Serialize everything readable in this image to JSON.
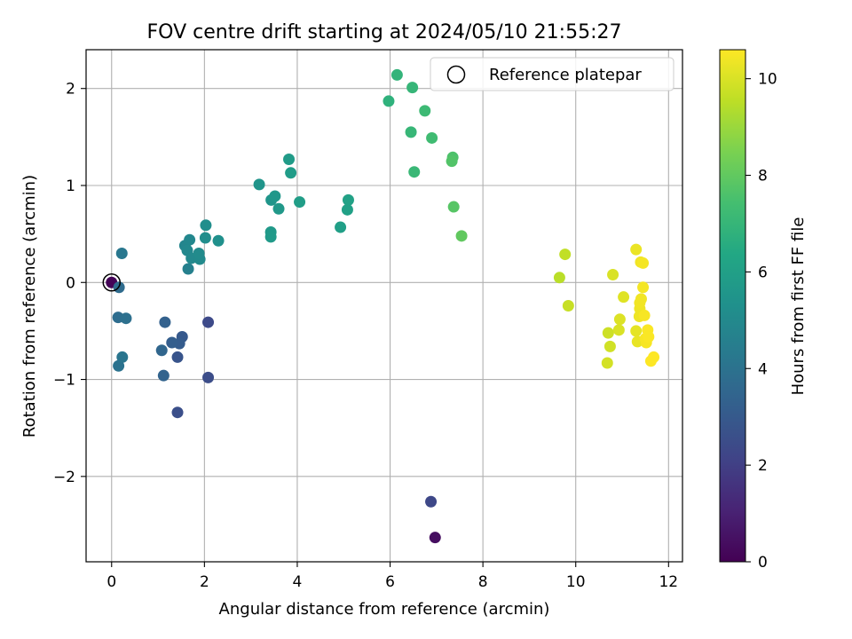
{
  "chart_data": {
    "type": "scatter",
    "title": "FOV centre drift starting at 2024/05/10 21:55:27",
    "xlabel": "Angular distance from reference (arcmin)",
    "ylabel": "Rotation from reference (arcmin)",
    "xlim": [
      -0.55,
      12.3
    ],
    "ylim": [
      -2.88,
      2.4
    ],
    "xticks": [
      0,
      2,
      4,
      6,
      8,
      10,
      12
    ],
    "yticks": [
      -2,
      -1,
      0,
      1,
      2
    ],
    "xtick_labels": [
      "0",
      "2",
      "4",
      "6",
      "8",
      "10",
      "12"
    ],
    "ytick_labels": [
      "−2",
      "−1",
      "0",
      "1",
      "2"
    ],
    "grid": true,
    "legend": {
      "label": "Reference platepar",
      "placement": "upper-right",
      "marker": "open-circle"
    },
    "reference_point": {
      "x": 0,
      "y": 0
    },
    "colorbar": {
      "label": "Hours from first FF file",
      "colormap": "viridis",
      "range": [
        0,
        10.6
      ],
      "ticks": [
        0,
        2,
        4,
        6,
        8,
        10
      ],
      "tick_labels": [
        "0",
        "2",
        "4",
        "6",
        "8",
        "10"
      ]
    },
    "points": [
      {
        "x": 0.0,
        "y": 0.0,
        "c": 0.1
      },
      {
        "x": 6.97,
        "y": -2.63,
        "c": 0.4
      },
      {
        "x": 6.88,
        "y": -2.26,
        "c": 2.3
      },
      {
        "x": 2.08,
        "y": -0.41,
        "c": 2.4
      },
      {
        "x": 2.08,
        "y": -0.98,
        "c": 2.5
      },
      {
        "x": 1.42,
        "y": -1.34,
        "c": 2.6
      },
      {
        "x": 1.42,
        "y": -0.77,
        "c": 2.8
      },
      {
        "x": 1.52,
        "y": -0.56,
        "c": 3.0
      },
      {
        "x": 1.46,
        "y": -0.63,
        "c": 3.1
      },
      {
        "x": 1.3,
        "y": -0.62,
        "c": 3.2
      },
      {
        "x": 1.15,
        "y": -0.41,
        "c": 3.3
      },
      {
        "x": 1.12,
        "y": -0.96,
        "c": 3.4
      },
      {
        "x": 1.08,
        "y": -0.7,
        "c": 3.5
      },
      {
        "x": 0.16,
        "y": -0.05,
        "c": 3.7
      },
      {
        "x": 0.14,
        "y": -0.36,
        "c": 3.8
      },
      {
        "x": 0.31,
        "y": -0.37,
        "c": 3.9
      },
      {
        "x": 0.15,
        "y": -0.86,
        "c": 4.0
      },
      {
        "x": 0.23,
        "y": -0.77,
        "c": 4.1
      },
      {
        "x": 0.22,
        "y": 0.3,
        "c": 4.2
      },
      {
        "x": 1.65,
        "y": 0.14,
        "c": 4.6
      },
      {
        "x": 1.58,
        "y": 0.38,
        "c": 4.8
      },
      {
        "x": 1.68,
        "y": 0.44,
        "c": 4.9
      },
      {
        "x": 1.63,
        "y": 0.33,
        "c": 4.95
      },
      {
        "x": 1.72,
        "y": 0.25,
        "c": 5.0
      },
      {
        "x": 1.9,
        "y": 0.24,
        "c": 5.05
      },
      {
        "x": 1.88,
        "y": 0.3,
        "c": 5.1
      },
      {
        "x": 2.02,
        "y": 0.46,
        "c": 5.15
      },
      {
        "x": 2.03,
        "y": 0.59,
        "c": 5.2
      },
      {
        "x": 2.3,
        "y": 0.43,
        "c": 5.3
      },
      {
        "x": 3.18,
        "y": 1.01,
        "c": 5.5
      },
      {
        "x": 3.44,
        "y": 0.85,
        "c": 5.55
      },
      {
        "x": 3.52,
        "y": 0.89,
        "c": 5.6
      },
      {
        "x": 3.6,
        "y": 0.76,
        "c": 5.65
      },
      {
        "x": 3.43,
        "y": 0.52,
        "c": 5.7
      },
      {
        "x": 3.43,
        "y": 0.47,
        "c": 5.75
      },
      {
        "x": 3.82,
        "y": 1.27,
        "c": 5.8
      },
      {
        "x": 3.86,
        "y": 1.13,
        "c": 5.85
      },
      {
        "x": 4.05,
        "y": 0.83,
        "c": 5.9
      },
      {
        "x": 4.93,
        "y": 0.57,
        "c": 6.0
      },
      {
        "x": 5.08,
        "y": 0.75,
        "c": 6.05
      },
      {
        "x": 5.1,
        "y": 0.85,
        "c": 6.1
      },
      {
        "x": 5.97,
        "y": 1.87,
        "c": 6.8
      },
      {
        "x": 6.15,
        "y": 2.14,
        "c": 6.9
      },
      {
        "x": 6.48,
        "y": 2.01,
        "c": 7.0
      },
      {
        "x": 6.45,
        "y": 1.55,
        "c": 7.05
      },
      {
        "x": 6.52,
        "y": 1.14,
        "c": 7.1
      },
      {
        "x": 6.75,
        "y": 1.77,
        "c": 7.2
      },
      {
        "x": 6.9,
        "y": 1.49,
        "c": 7.3
      },
      {
        "x": 7.35,
        "y": 1.29,
        "c": 7.6
      },
      {
        "x": 7.33,
        "y": 1.25,
        "c": 7.7
      },
      {
        "x": 7.37,
        "y": 0.78,
        "c": 7.8
      },
      {
        "x": 7.54,
        "y": 0.48,
        "c": 8.0
      },
      {
        "x": 9.65,
        "y": 0.05,
        "c": 9.5
      },
      {
        "x": 9.77,
        "y": 0.29,
        "c": 9.6
      },
      {
        "x": 9.84,
        "y": -0.24,
        "c": 9.7
      },
      {
        "x": 10.7,
        "y": -0.52,
        "c": 9.8
      },
      {
        "x": 10.74,
        "y": -0.66,
        "c": 9.85
      },
      {
        "x": 10.68,
        "y": -0.83,
        "c": 9.9
      },
      {
        "x": 10.8,
        "y": 0.08,
        "c": 10.0
      },
      {
        "x": 10.93,
        "y": -0.49,
        "c": 10.0
      },
      {
        "x": 10.95,
        "y": -0.38,
        "c": 10.05
      },
      {
        "x": 11.03,
        "y": -0.15,
        "c": 10.1
      },
      {
        "x": 11.3,
        "y": -0.5,
        "c": 10.2
      },
      {
        "x": 11.33,
        "y": -0.61,
        "c": 10.25
      },
      {
        "x": 11.3,
        "y": 0.34,
        "c": 10.3
      },
      {
        "x": 11.37,
        "y": -0.35,
        "c": 10.35
      },
      {
        "x": 11.38,
        "y": -0.27,
        "c": 10.35
      },
      {
        "x": 11.38,
        "y": -0.21,
        "c": 10.4
      },
      {
        "x": 11.41,
        "y": -0.17,
        "c": 10.4
      },
      {
        "x": 11.4,
        "y": 0.21,
        "c": 10.4
      },
      {
        "x": 11.45,
        "y": 0.2,
        "c": 10.45
      },
      {
        "x": 11.45,
        "y": -0.05,
        "c": 10.45
      },
      {
        "x": 11.48,
        "y": -0.34,
        "c": 10.5
      },
      {
        "x": 11.5,
        "y": -0.58,
        "c": 10.5
      },
      {
        "x": 11.52,
        "y": -0.62,
        "c": 10.5
      },
      {
        "x": 11.55,
        "y": -0.49,
        "c": 10.55
      },
      {
        "x": 11.57,
        "y": -0.56,
        "c": 10.55
      },
      {
        "x": 11.62,
        "y": -0.81,
        "c": 10.6
      },
      {
        "x": 11.68,
        "y": -0.77,
        "c": 10.6
      }
    ]
  }
}
